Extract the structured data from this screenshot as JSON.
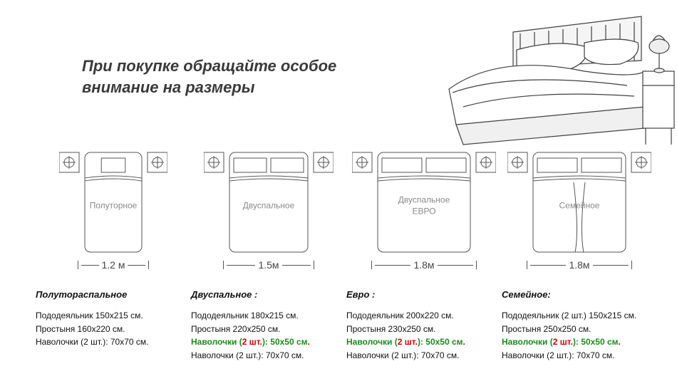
{
  "headline": "При покупке  обращайте особое внимание на размеры",
  "colors": {
    "text": "#3a3a3a",
    "stroke": "#555555",
    "bed_label": "#8a8a8a",
    "accent_green": "#1c8c1c",
    "accent_red": "#d10000",
    "background": "#ffffff"
  },
  "beds": [
    {
      "id": "polutornoe",
      "label_on_bed": "Полуторное",
      "width_label": "1.2  м",
      "bed_w": 80,
      "bed_h": 140,
      "pillows": 1,
      "specs_title": "Полутораспальное",
      "specs": [
        {
          "plain": "Пододеяльник  150х215 см."
        },
        {
          "plain": "Простыня  160х220 см."
        },
        {
          "plain": "Наволочки (2 шт.): 70х70 см."
        }
      ]
    },
    {
      "id": "dvuspalnoe",
      "label_on_bed": "Двуспальное",
      "width_label": "1.5м",
      "bed_w": 110,
      "bed_h": 140,
      "pillows": 2,
      "specs_title": "Двуспальное :",
      "specs": [
        {
          "plain": "Пододеяльник  180х215 см."
        },
        {
          "plain": "Простыня  220х250 см."
        },
        {
          "green": "Наволочки (",
          "red": "2 шт.",
          "green2": "): 50х50 см",
          "trail": "."
        },
        {
          "plain": "Наволочки (2 шт.): 70х70 см."
        }
      ]
    },
    {
      "id": "evro",
      "label_on_bed": "Двуспальное\nЕВРО",
      "width_label": "1.8м",
      "bed_w": 130,
      "bed_h": 140,
      "pillows": 2,
      "specs_title": "Евро :",
      "specs": [
        {
          "plain": "Пододеяльник  200х220 см."
        },
        {
          "plain": "Простыня  230х250 см."
        },
        {
          "green": "Наволочки (",
          "red": "2 шт.",
          "green2": "): 50х50 см",
          "trail": "."
        },
        {
          "plain": "Наволочки (2 шт.): 70х70 см."
        }
      ]
    },
    {
      "id": "semeynoe",
      "label_on_bed": "Семейное",
      "width_label": "1.8м",
      "bed_w": 130,
      "bed_h": 140,
      "pillows": 2,
      "family_split": true,
      "specs_title": "Семейное:",
      "specs": [
        {
          "plain": "Пододеяльник (2 шт.) 150х215 см."
        },
        {
          "plain": "Простыня  250х250 см."
        },
        {
          "green": "Наволочки (",
          "red": "2 шт.",
          "green2": "): 50х50 см",
          "trail": "."
        },
        {
          "plain": "Наволочки (2 шт.): 70х70 см."
        }
      ]
    }
  ]
}
